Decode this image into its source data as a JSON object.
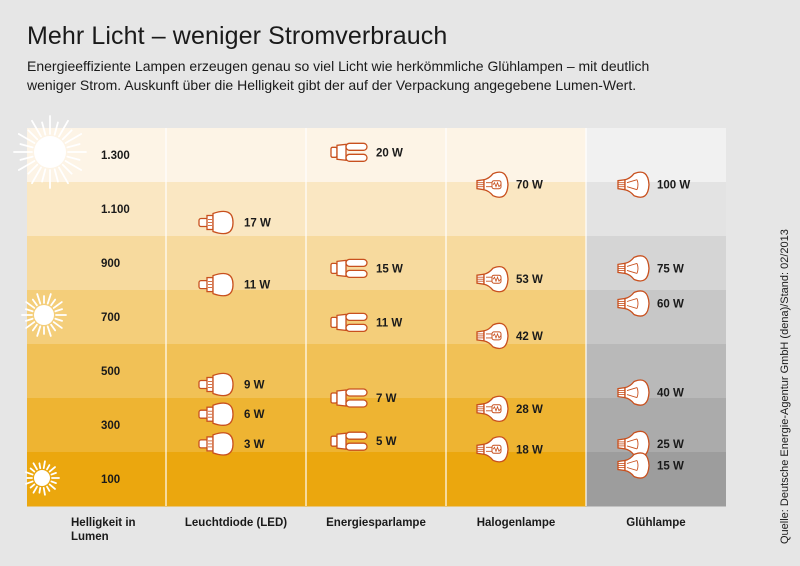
{
  "title": "Mehr Licht – weniger Stromverbrauch",
  "subtitle_line1": "Energieeffiziente Lampen erzeugen genau so viel Licht wie herkömmliche Glühlampen – mit deutlich",
  "subtitle_line2": "weniger Strom. Auskunft über die Helligkeit gibt der auf der Verpackung angegebene Lumen-Wert.",
  "source": "Quelle: Deutsche Energie-Agentur GmbH (dena)/Stand: 02/2013",
  "colors": {
    "band_light": "#fdf4e6",
    "band_dark": "#eba70e",
    "gray_light": "#f1f1f1",
    "gray_dark": "#9d9d9d",
    "icon_stroke": "#c8501e"
  },
  "chart_data": {
    "type": "table",
    "ylabel": "Helligkeit in Lumen",
    "lumen_levels": [
      1300,
      1100,
      900,
      700,
      500,
      300,
      100
    ],
    "lumen_labels": [
      "1.300",
      "1.100",
      "900",
      "700",
      "500",
      "300",
      "100"
    ],
    "ylim": [
      0,
      1400
    ],
    "columns": [
      "Helligkeit in Lumen",
      "Leuchtdiode (LED)",
      "Energiesparlampe",
      "Halogenlampe",
      "Glühlampe"
    ],
    "series": [
      {
        "name": "Leuchtdiode (LED)",
        "icon": "led-bulb-icon",
        "points": [
          {
            "lumen": 1050,
            "label": "17 W"
          },
          {
            "lumen": 820,
            "label": "11 W"
          },
          {
            "lumen": 450,
            "label": "9 W"
          },
          {
            "lumen": 340,
            "label": "6 W"
          },
          {
            "lumen": 230,
            "label": "3 W"
          }
        ]
      },
      {
        "name": "Energiesparlampe",
        "icon": "cfl-bulb-icon",
        "points": [
          {
            "lumen": 1310,
            "label": "20 W"
          },
          {
            "lumen": 880,
            "label": "15 W"
          },
          {
            "lumen": 680,
            "label": "11 W"
          },
          {
            "lumen": 400,
            "label": "7 W"
          },
          {
            "lumen": 240,
            "label": "5 W"
          }
        ]
      },
      {
        "name": "Halogenlampe",
        "icon": "halogen-bulb-icon",
        "points": [
          {
            "lumen": 1190,
            "label": "70 W"
          },
          {
            "lumen": 840,
            "label": "53 W"
          },
          {
            "lumen": 630,
            "label": "42 W"
          },
          {
            "lumen": 360,
            "label": "28 W"
          },
          {
            "lumen": 210,
            "label": "18 W"
          }
        ]
      },
      {
        "name": "Glühlampe",
        "icon": "incandescent-bulb-icon",
        "points": [
          {
            "lumen": 1190,
            "label": "100 W"
          },
          {
            "lumen": 880,
            "label": "75 W"
          },
          {
            "lumen": 750,
            "label": "60 W"
          },
          {
            "lumen": 420,
            "label": "40 W"
          },
          {
            "lumen": 230,
            "label": "25 W"
          },
          {
            "lumen": 150,
            "label": "15 W"
          }
        ]
      }
    ]
  }
}
